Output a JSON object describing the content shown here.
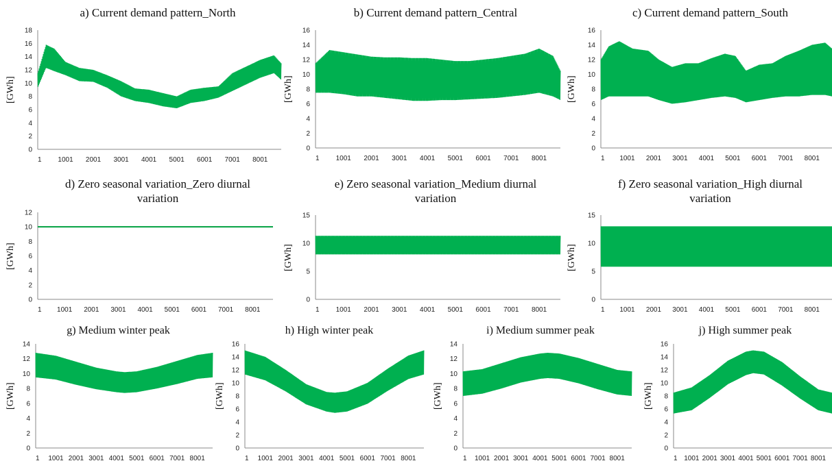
{
  "figure": {
    "series_color": "#00b050",
    "line_color": "#00a040",
    "y_unit": "[GWh]"
  },
  "chart_data": [
    {
      "id": "a",
      "type": "line",
      "title": "a) Current demand pattern_North",
      "ylabel": "[GWh]",
      "x_range": [
        1,
        8760
      ],
      "x_ticks": [
        "1",
        "1001",
        "2001",
        "3001",
        "4001",
        "5001",
        "6001",
        "7001",
        "8001"
      ],
      "ylim": [
        0,
        18
      ],
      "y_ticks": [
        0,
        2,
        4,
        6,
        8,
        10,
        12,
        14,
        16,
        18
      ],
      "grid": false,
      "series": [
        {
          "x": [
            1,
            300,
            600,
            1000,
            1500,
            2000,
            2500,
            3000,
            3500,
            4000,
            4500,
            5000,
            5500,
            6000,
            6500,
            7000,
            7500,
            8000,
            8500,
            8760
          ],
          "upper": [
            11.5,
            15.8,
            15.2,
            13.2,
            12.3,
            12.0,
            11.2,
            10.3,
            9.2,
            9.0,
            8.5,
            8.0,
            9.0,
            9.3,
            9.5,
            11.5,
            12.5,
            13.5,
            14.2,
            13.0
          ],
          "lower": [
            9.3,
            12.3,
            11.8,
            11.2,
            10.3,
            10.2,
            9.3,
            8.0,
            7.3,
            7.0,
            6.5,
            6.2,
            7.0,
            7.3,
            7.8,
            8.8,
            9.8,
            10.8,
            11.5,
            10.5
          ]
        }
      ]
    },
    {
      "id": "b",
      "type": "line",
      "title": "b) Current demand pattern_Central",
      "ylabel": "[GWh]",
      "x_range": [
        1,
        8760
      ],
      "x_ticks": [
        "1",
        "1001",
        "2001",
        "3001",
        "4001",
        "5001",
        "6001",
        "7001",
        "8001"
      ],
      "ylim": [
        0,
        16
      ],
      "y_ticks": [
        0,
        2,
        4,
        6,
        8,
        10,
        12,
        14,
        16
      ],
      "grid": false,
      "series": [
        {
          "x": [
            1,
            500,
            1000,
            1500,
            2000,
            2500,
            3000,
            3500,
            4000,
            4500,
            5000,
            5500,
            6000,
            6500,
            7000,
            7500,
            8000,
            8500,
            8760
          ],
          "upper": [
            11.5,
            13.3,
            13.0,
            12.7,
            12.4,
            12.3,
            12.3,
            12.2,
            12.2,
            12.0,
            11.8,
            11.8,
            12.0,
            12.2,
            12.5,
            12.8,
            13.5,
            12.5,
            10.5
          ],
          "lower": [
            7.5,
            7.5,
            7.3,
            7.0,
            7.0,
            6.8,
            6.6,
            6.4,
            6.4,
            6.5,
            6.5,
            6.6,
            6.7,
            6.8,
            7.0,
            7.2,
            7.5,
            7.0,
            6.5
          ]
        }
      ]
    },
    {
      "id": "c",
      "type": "line",
      "title": "c) Current demand pattern_South",
      "ylabel": "[GWh]",
      "x_range": [
        1,
        8760
      ],
      "x_ticks": [
        "1",
        "1001",
        "2001",
        "3001",
        "4001",
        "5001",
        "6001",
        "7001",
        "8001"
      ],
      "ylim": [
        0,
        16
      ],
      "y_ticks": [
        0,
        2,
        4,
        6,
        8,
        10,
        12,
        14,
        16
      ],
      "grid": false,
      "series": [
        {
          "x": [
            1,
            300,
            700,
            1200,
            1800,
            2200,
            2700,
            3200,
            3700,
            4200,
            4700,
            5100,
            5500,
            6000,
            6500,
            7000,
            7500,
            8000,
            8500,
            8760
          ],
          "upper": [
            12.0,
            13.8,
            14.5,
            13.5,
            13.2,
            12.0,
            11.0,
            11.5,
            11.5,
            12.2,
            12.8,
            12.5,
            10.5,
            11.3,
            11.5,
            12.5,
            13.2,
            14.0,
            14.3,
            13.5
          ],
          "lower": [
            6.5,
            7.0,
            7.0,
            7.0,
            7.0,
            6.5,
            6.0,
            6.2,
            6.5,
            6.8,
            7.0,
            6.8,
            6.2,
            6.5,
            6.8,
            7.0,
            7.0,
            7.2,
            7.2,
            7.0
          ]
        }
      ]
    },
    {
      "id": "d",
      "type": "line",
      "title": "d) Zero seasonal variation_Zero diurnal variation",
      "title_lines": [
        "d) Zero seasonal variation_Zero diurnal",
        "variation"
      ],
      "ylabel": "[GWh]",
      "x_range": [
        1,
        8760
      ],
      "x_ticks": [
        "1",
        "1001",
        "2001",
        "3001",
        "4001",
        "5001",
        "6001",
        "7001",
        "8001"
      ],
      "ylim": [
        0,
        12
      ],
      "y_ticks": [
        0,
        2,
        4,
        6,
        8,
        10,
        12
      ],
      "grid": false,
      "series": [
        {
          "x": [
            1,
            8760
          ],
          "upper": [
            10,
            10
          ],
          "lower": [
            10,
            10
          ]
        }
      ]
    },
    {
      "id": "e",
      "type": "line",
      "title": "e) Zero seasonal variation_Medium diurnal variation",
      "title_lines": [
        "e) Zero seasonal variation_Medium diurnal",
        "variation"
      ],
      "ylabel": "[GWh]",
      "x_range": [
        1,
        8760
      ],
      "x_ticks": [
        "1",
        "1001",
        "2001",
        "3001",
        "4001",
        "5001",
        "6001",
        "7001",
        "8001"
      ],
      "ylim": [
        0,
        15
      ],
      "y_ticks": [
        0,
        5,
        10,
        15
      ],
      "grid": false,
      "series": [
        {
          "x": [
            1,
            8760
          ],
          "upper": [
            11.3,
            11.3
          ],
          "lower": [
            8.0,
            8.0
          ]
        }
      ]
    },
    {
      "id": "f",
      "type": "line",
      "title": "f) Zero seasonal variation_High diurnal variation",
      "title_lines": [
        "f) Zero seasonal variation_High diurnal",
        "variation"
      ],
      "ylabel": "[GWh]",
      "x_range": [
        1,
        8760
      ],
      "x_ticks": [
        "1",
        "1001",
        "2001",
        "3001",
        "4001",
        "5001",
        "6001",
        "7001",
        "8001"
      ],
      "ylim": [
        0,
        15
      ],
      "y_ticks": [
        0,
        5,
        10,
        15
      ],
      "grid": false,
      "series": [
        {
          "x": [
            1,
            8760
          ],
          "upper": [
            13.0,
            13.0
          ],
          "lower": [
            5.8,
            5.8
          ]
        }
      ]
    },
    {
      "id": "g",
      "type": "line",
      "title": "g) Medium winter peak",
      "ylabel": "[GWh]",
      "x_range": [
        1,
        8760
      ],
      "x_ticks": [
        "1",
        "1001",
        "2001",
        "3001",
        "4001",
        "5001",
        "6001",
        "7001",
        "8001"
      ],
      "ylim": [
        0,
        14
      ],
      "y_ticks": [
        0,
        2,
        4,
        6,
        8,
        10,
        12,
        14
      ],
      "grid": false,
      "series": [
        {
          "x": [
            1,
            1000,
            2000,
            3000,
            4000,
            4400,
            5000,
            6000,
            7000,
            8000,
            8760
          ],
          "upper": [
            12.8,
            12.4,
            11.6,
            10.8,
            10.3,
            10.2,
            10.3,
            10.9,
            11.7,
            12.5,
            12.8
          ],
          "lower": [
            9.5,
            9.2,
            8.5,
            7.9,
            7.5,
            7.4,
            7.5,
            8.0,
            8.6,
            9.3,
            9.5
          ]
        }
      ]
    },
    {
      "id": "h",
      "type": "line",
      "title": "h) High winter peak",
      "ylabel": "[GWh]",
      "x_range": [
        1,
        8760
      ],
      "x_ticks": [
        "1",
        "1001",
        "2001",
        "3001",
        "4001",
        "5001",
        "6001",
        "7001",
        "8001"
      ],
      "ylim": [
        0,
        16
      ],
      "y_ticks": [
        0,
        2,
        4,
        6,
        8,
        10,
        12,
        14,
        16
      ],
      "grid": false,
      "series": [
        {
          "x": [
            1,
            1000,
            2000,
            3000,
            4000,
            4400,
            5000,
            6000,
            7000,
            8000,
            8760
          ],
          "upper": [
            15.0,
            14.0,
            12.0,
            9.8,
            8.6,
            8.5,
            8.7,
            10.0,
            12.2,
            14.2,
            15.0
          ],
          "lower": [
            11.3,
            10.4,
            8.7,
            6.7,
            5.6,
            5.4,
            5.6,
            6.8,
            8.8,
            10.6,
            11.3
          ]
        }
      ]
    },
    {
      "id": "i",
      "type": "line",
      "title": "i) Medium summer peak",
      "ylabel": "[GWh]",
      "x_range": [
        1,
        8760
      ],
      "x_ticks": [
        "1",
        "1001",
        "2001",
        "3001",
        "4001",
        "5001",
        "6001",
        "7001",
        "8001"
      ],
      "ylim": [
        0,
        14
      ],
      "y_ticks": [
        0,
        2,
        4,
        6,
        8,
        10,
        12,
        14
      ],
      "grid": false,
      "series": [
        {
          "x": [
            1,
            1000,
            2000,
            3000,
            4000,
            4400,
            5000,
            6000,
            7000,
            8000,
            8760
          ],
          "upper": [
            10.3,
            10.6,
            11.4,
            12.2,
            12.7,
            12.8,
            12.7,
            12.1,
            11.3,
            10.5,
            10.3
          ],
          "lower": [
            7.0,
            7.3,
            8.0,
            8.8,
            9.3,
            9.4,
            9.3,
            8.7,
            7.9,
            7.2,
            7.0
          ]
        }
      ]
    },
    {
      "id": "j",
      "type": "line",
      "title": "j) High summer peak",
      "ylabel": "[GWh]",
      "x_range": [
        1,
        8760
      ],
      "x_ticks": [
        "1",
        "1001",
        "2001",
        "3001",
        "4001",
        "5001",
        "6001",
        "7001",
        "8001"
      ],
      "ylim": [
        0,
        16
      ],
      "y_ticks": [
        0,
        2,
        4,
        6,
        8,
        10,
        12,
        14,
        16
      ],
      "grid": false,
      "series": [
        {
          "x": [
            1,
            1000,
            2000,
            3000,
            4000,
            4400,
            5000,
            6000,
            7000,
            8000,
            8760
          ],
          "upper": [
            8.5,
            9.3,
            11.2,
            13.4,
            14.8,
            15.0,
            14.8,
            13.2,
            11.0,
            9.0,
            8.5
          ],
          "lower": [
            5.3,
            5.8,
            7.7,
            9.8,
            11.2,
            11.5,
            11.3,
            9.6,
            7.6,
            5.8,
            5.3
          ]
        }
      ]
    }
  ]
}
